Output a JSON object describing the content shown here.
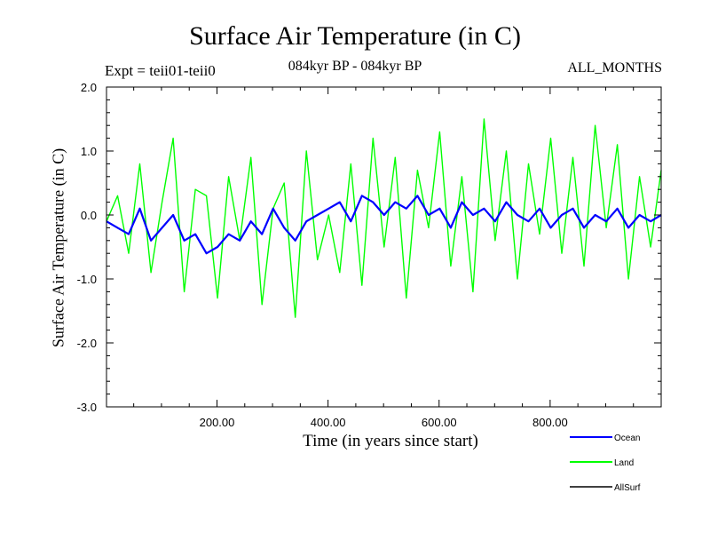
{
  "header": {
    "expt": "Expt = teii01-teii0",
    "period": "084kyr BP - 084kyr BP",
    "months": "ALL_MONTHS"
  },
  "chart_data": {
    "type": "line",
    "title": "Surface Air Temperature (in C)",
    "xlabel": "Time (in years since start)",
    "ylabel": "Surface Air Temperature (in C)",
    "xlim": [
      1,
      1000
    ],
    "ylim": [
      -3.0,
      2.0
    ],
    "xticks": [
      200,
      400,
      600,
      800
    ],
    "xtick_labels": [
      "200.00",
      "400.00",
      "600.00",
      "800.00"
    ],
    "yticks": [
      2.0,
      1.0,
      0.0,
      -1.0,
      -2.0,
      -3.0
    ],
    "ytick_labels": [
      "2.0",
      "1.0",
      "0.0",
      "-1.0",
      "-2.0",
      "-3.0"
    ],
    "grid": false,
    "legend_position": "bottom-right",
    "series": [
      {
        "name": "Land",
        "color": "#00ff00",
        "sample_every": 20,
        "values": [
          -0.1,
          0.3,
          -0.6,
          0.8,
          -0.9,
          0.2,
          1.2,
          -1.2,
          0.4,
          0.3,
          -1.3,
          0.6,
          -0.4,
          0.9,
          -1.4,
          0.1,
          0.5,
          -1.6,
          1.0,
          -0.7,
          0.0,
          -0.9,
          0.8,
          -1.1,
          1.2,
          -0.5,
          0.9,
          -1.3,
          0.7,
          -0.2,
          1.3,
          -0.8,
          0.6,
          -1.2,
          1.5,
          -0.4,
          1.0,
          -1.0,
          0.8,
          -0.3,
          1.2,
          -0.6,
          0.9,
          -0.8,
          1.4,
          -0.2,
          1.1,
          -1.0,
          0.6,
          -0.5,
          0.7
        ]
      },
      {
        "name": "Ocean",
        "color": "#0000ff",
        "sample_every": 20,
        "values": [
          -0.1,
          -0.2,
          -0.3,
          0.1,
          -0.4,
          -0.2,
          0.0,
          -0.4,
          -0.3,
          -0.6,
          -0.5,
          -0.3,
          -0.4,
          -0.1,
          -0.3,
          0.1,
          -0.2,
          -0.4,
          -0.1,
          0.0,
          0.1,
          0.2,
          -0.1,
          0.3,
          0.2,
          0.0,
          0.2,
          0.1,
          0.3,
          0.0,
          0.1,
          -0.2,
          0.2,
          0.0,
          0.1,
          -0.1,
          0.2,
          0.0,
          -0.1,
          0.1,
          -0.2,
          0.0,
          0.1,
          -0.2,
          0.0,
          -0.1,
          0.1,
          -0.2,
          0.0,
          -0.1,
          0.0
        ]
      },
      {
        "name": "AllSurf",
        "color": "#000000",
        "sample_every": 20,
        "values": [
          -0.1,
          -0.2,
          -0.3,
          0.1,
          -0.4,
          -0.2,
          0.0,
          -0.4,
          -0.3,
          -0.6,
          -0.5,
          -0.3,
          -0.4,
          -0.1,
          -0.3,
          0.1,
          -0.2,
          -0.4,
          -0.1,
          0.0,
          0.1,
          0.2,
          -0.1,
          0.3,
          0.2,
          0.0,
          0.2,
          0.1,
          0.3,
          0.0,
          0.1,
          -0.2,
          0.2,
          0.0,
          0.1,
          -0.1,
          0.2,
          0.0,
          -0.1,
          0.1,
          -0.2,
          0.0,
          0.1,
          -0.2,
          0.0,
          -0.1,
          0.1,
          -0.2,
          0.0,
          -0.1,
          0.0
        ]
      }
    ]
  }
}
